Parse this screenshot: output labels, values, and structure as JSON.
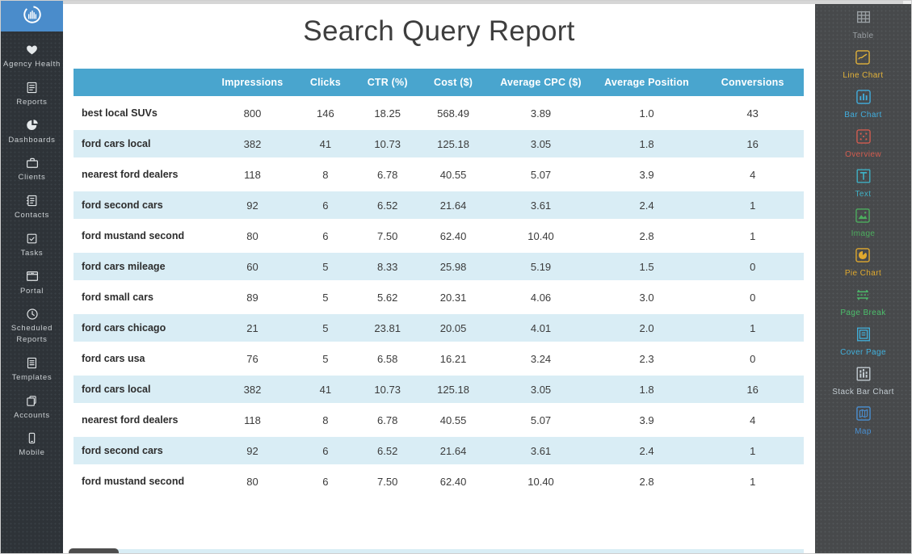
{
  "report": {
    "title": "Search Query Report"
  },
  "colors": {
    "logo_blue": "#4a8ccb",
    "header_blue": "#49a5ce",
    "row_alt_blue": "#d9edf5",
    "left_sidebar_bg": "#2e3338",
    "right_sidebar_bg": "#47494b"
  },
  "left_sidebar": {
    "items": [
      {
        "label": "Agency Health",
        "icon": "heart-icon"
      },
      {
        "label": "Reports",
        "icon": "report-document-icon"
      },
      {
        "label": "Dashboards",
        "icon": "pie-chart-icon"
      },
      {
        "label": "Clients",
        "icon": "briefcase-icon"
      },
      {
        "label": "Contacts",
        "icon": "contact-book-icon"
      },
      {
        "label": "Tasks",
        "icon": "checkbox-icon"
      },
      {
        "label": "Portal",
        "icon": "browser-window-icon"
      },
      {
        "label": "Scheduled Reports",
        "icon": "clock-icon"
      },
      {
        "label": "Templates",
        "icon": "template-document-icon"
      },
      {
        "label": "Accounts",
        "icon": "stacked-cards-icon"
      },
      {
        "label": "Mobile",
        "icon": "smartphone-icon"
      }
    ]
  },
  "right_sidebar": {
    "items": [
      {
        "label": "Table",
        "icon": "table-widget-icon",
        "color": "#9aa0a4"
      },
      {
        "label": "Line Chart",
        "icon": "line-chart-widget-icon",
        "color": "#e3b33a"
      },
      {
        "label": "Bar Chart",
        "icon": "bar-chart-widget-icon",
        "color": "#41aede"
      },
      {
        "label": "Overview",
        "icon": "overview-widget-icon",
        "color": "#d35c4f"
      },
      {
        "label": "Text",
        "icon": "text-widget-icon",
        "color": "#3fb0c4"
      },
      {
        "label": "Image",
        "icon": "image-widget-icon",
        "color": "#4cae5e"
      },
      {
        "label": "Pie Chart",
        "icon": "pie-chart-widget-icon",
        "color": "#e0a92e"
      },
      {
        "label": "Page Break",
        "icon": "page-break-widget-icon",
        "color": "#4cbf6b"
      },
      {
        "label": "Cover Page",
        "icon": "cover-page-widget-icon",
        "color": "#41b1dd"
      },
      {
        "label": "Stack Bar Chart",
        "icon": "stack-bar-chart-widget-icon",
        "color": "#c3ccd2"
      },
      {
        "label": "Map",
        "icon": "map-widget-icon",
        "color": "#4a90d2"
      }
    ]
  },
  "table": {
    "columns": [
      "",
      "Impressions",
      "Clicks",
      "CTR (%)",
      "Cost ($)",
      "Average CPC ($)",
      "Average Position",
      "Conversions"
    ],
    "rows": [
      [
        "best local SUVs",
        "800",
        "146",
        "18.25",
        "568.49",
        "3.89",
        "1.0",
        "43"
      ],
      [
        "ford cars local",
        "382",
        "41",
        "10.73",
        "125.18",
        "3.05",
        "1.8",
        "16"
      ],
      [
        "nearest ford dealers",
        "118",
        "8",
        "6.78",
        "40.55",
        "5.07",
        "3.9",
        "4"
      ],
      [
        "ford second cars",
        "92",
        "6",
        "6.52",
        "21.64",
        "3.61",
        "2.4",
        "1"
      ],
      [
        "ford mustand second",
        "80",
        "6",
        "7.50",
        "62.40",
        "10.40",
        "2.8",
        "1"
      ],
      [
        "ford cars mileage",
        "60",
        "5",
        "8.33",
        "25.98",
        "5.19",
        "1.5",
        "0"
      ],
      [
        "ford small cars",
        "89",
        "5",
        "5.62",
        "20.31",
        "4.06",
        "3.0",
        "0"
      ],
      [
        "ford cars chicago",
        "21",
        "5",
        "23.81",
        "20.05",
        "4.01",
        "2.0",
        "1"
      ],
      [
        "ford cars usa",
        "76",
        "5",
        "6.58",
        "16.21",
        "3.24",
        "2.3",
        "0"
      ],
      [
        "ford cars local",
        "382",
        "41",
        "10.73",
        "125.18",
        "3.05",
        "1.8",
        "16"
      ],
      [
        "nearest ford dealers",
        "118",
        "8",
        "6.78",
        "40.55",
        "5.07",
        "3.9",
        "4"
      ],
      [
        "ford second cars",
        "92",
        "6",
        "6.52",
        "21.64",
        "3.61",
        "2.4",
        "1"
      ],
      [
        "ford mustand second",
        "80",
        "6",
        "7.50",
        "62.40",
        "10.40",
        "2.8",
        "1"
      ]
    ]
  }
}
